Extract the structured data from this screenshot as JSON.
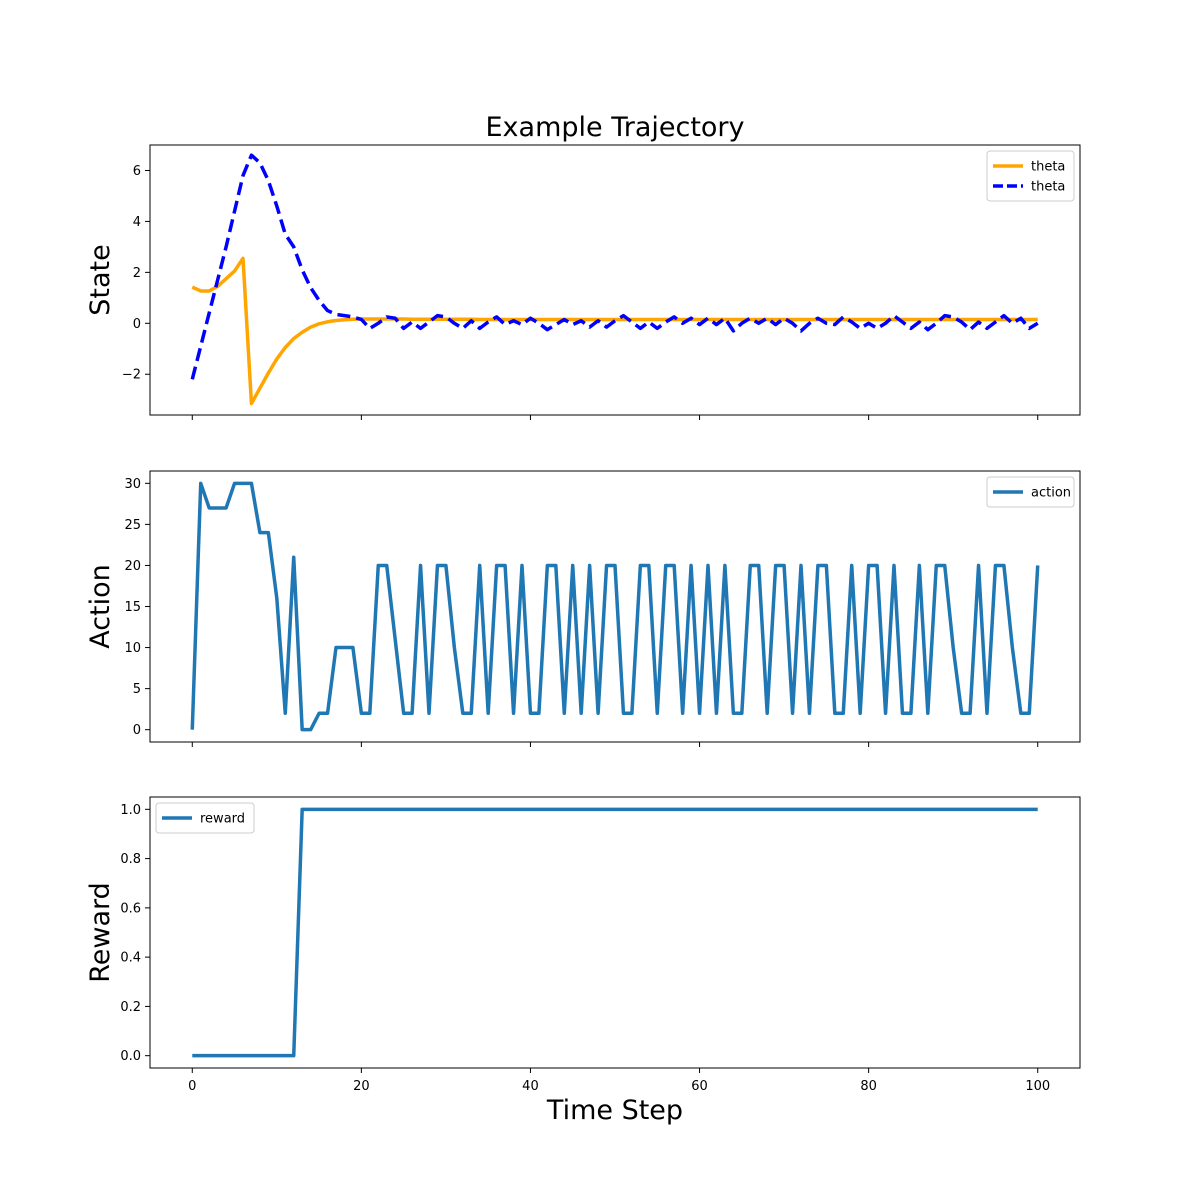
{
  "figure": {
    "title": "Example Trajectory",
    "xlabel": "Time Step"
  },
  "chart_data": [
    {
      "type": "line",
      "ylabel": "State",
      "xlim": [
        -5,
        105
      ],
      "ylim": [
        -3.6,
        7.0
      ],
      "xticks": [
        0,
        20,
        40,
        60,
        80,
        100
      ],
      "yticks": [
        -2,
        0,
        2,
        4,
        6
      ],
      "ytick_labels": [
        "−2",
        "0",
        "2",
        "4",
        "6"
      ],
      "show_xtick_labels": false,
      "grid": false,
      "legend_position": "top-right",
      "series": [
        {
          "name": "theta",
          "color": "#ffa500",
          "style": "solid",
          "x": [
            0,
            1,
            2,
            3,
            4,
            5,
            6,
            7,
            8,
            9,
            10,
            11,
            12,
            13,
            14,
            15,
            16,
            17,
            18,
            19,
            20,
            21,
            22,
            23,
            24,
            25,
            26,
            27,
            28,
            29,
            30,
            31,
            32,
            33,
            34,
            35,
            36,
            37,
            38,
            39,
            40,
            41,
            42,
            43,
            44,
            45,
            46,
            47,
            48,
            49,
            50,
            51,
            52,
            53,
            54,
            55,
            56,
            57,
            58,
            59,
            60,
            61,
            62,
            63,
            64,
            65,
            66,
            67,
            68,
            69,
            70,
            71,
            72,
            73,
            74,
            75,
            76,
            77,
            78,
            79,
            80,
            81,
            82,
            83,
            84,
            85,
            86,
            87,
            88,
            89,
            90,
            91,
            92,
            93,
            94,
            95,
            96,
            97,
            98,
            99,
            100
          ],
          "y": [
            1.42,
            1.27,
            1.27,
            1.45,
            1.75,
            2.05,
            2.55,
            -3.15,
            -2.55,
            -1.95,
            -1.4,
            -0.95,
            -0.6,
            -0.35,
            -0.15,
            -0.02,
            0.06,
            0.11,
            0.14,
            0.16,
            0.17,
            0.17,
            0.17,
            0.17,
            0.17,
            0.17,
            0.16,
            0.16,
            0.16,
            0.16,
            0.16,
            0.16,
            0.16,
            0.16,
            0.15,
            0.15,
            0.15,
            0.15,
            0.15,
            0.15,
            0.15,
            0.15,
            0.15,
            0.15,
            0.15,
            0.15,
            0.15,
            0.15,
            0.15,
            0.15,
            0.15,
            0.15,
            0.15,
            0.15,
            0.15,
            0.15,
            0.15,
            0.15,
            0.15,
            0.15,
            0.15,
            0.15,
            0.15,
            0.15,
            0.15,
            0.15,
            0.15,
            0.15,
            0.15,
            0.15,
            0.15,
            0.15,
            0.15,
            0.15,
            0.15,
            0.15,
            0.15,
            0.15,
            0.15,
            0.15,
            0.15,
            0.15,
            0.15,
            0.15,
            0.15,
            0.15,
            0.15,
            0.15,
            0.15,
            0.15,
            0.15,
            0.15,
            0.15,
            0.15,
            0.15,
            0.15,
            0.15,
            0.15,
            0.15,
            0.15,
            0.15
          ]
        },
        {
          "name": "theta",
          "color": "#0000ff",
          "style": "dashed",
          "x": [
            0,
            1,
            2,
            3,
            4,
            5,
            6,
            7,
            8,
            9,
            10,
            11,
            12,
            13,
            14,
            15,
            16,
            17,
            18,
            19,
            20,
            21,
            22,
            23,
            24,
            25,
            26,
            27,
            28,
            29,
            30,
            31,
            32,
            33,
            34,
            35,
            36,
            37,
            38,
            39,
            40,
            41,
            42,
            43,
            44,
            45,
            46,
            47,
            48,
            49,
            50,
            51,
            52,
            53,
            54,
            55,
            56,
            57,
            58,
            59,
            60,
            61,
            62,
            63,
            64,
            65,
            66,
            67,
            68,
            69,
            70,
            71,
            72,
            73,
            74,
            75,
            76,
            77,
            78,
            79,
            80,
            81,
            82,
            83,
            84,
            85,
            86,
            87,
            88,
            89,
            90,
            91,
            92,
            93,
            94,
            95,
            96,
            97,
            98,
            99,
            100
          ],
          "y": [
            -2.2,
            -0.9,
            0.4,
            1.7,
            3.0,
            4.4,
            5.8,
            6.6,
            6.3,
            5.6,
            4.6,
            3.5,
            3.0,
            2.1,
            1.4,
            0.9,
            0.5,
            0.35,
            0.3,
            0.25,
            0.15,
            -0.2,
            0.0,
            0.25,
            0.2,
            -0.2,
            0.05,
            -0.2,
            0.05,
            0.3,
            0.25,
            0.0,
            -0.2,
            0.1,
            -0.2,
            0.05,
            0.25,
            -0.05,
            0.1,
            -0.05,
            0.2,
            0.0,
            -0.25,
            -0.05,
            0.15,
            -0.05,
            0.1,
            -0.15,
            0.1,
            -0.15,
            0.1,
            0.3,
            0.05,
            -0.2,
            0.05,
            -0.2,
            0.05,
            0.25,
            0.0,
            0.2,
            -0.05,
            0.2,
            -0.05,
            0.2,
            -0.3,
            0.0,
            0.2,
            0.0,
            0.2,
            -0.05,
            0.2,
            0.0,
            -0.3,
            0.0,
            0.2,
            0.0,
            -0.05,
            0.25,
            0.05,
            -0.2,
            0.0,
            -0.2,
            0.0,
            0.3,
            0.05,
            -0.2,
            0.05,
            -0.25,
            0.0,
            0.3,
            0.25,
            0.05,
            -0.25,
            0.05,
            -0.2,
            0.05,
            0.3,
            0.0,
            0.2,
            -0.2,
            0.0
          ]
        }
      ]
    },
    {
      "type": "line",
      "ylabel": "Action",
      "xlim": [
        -5,
        105
      ],
      "ylim": [
        -1.5,
        31.5
      ],
      "xticks": [
        0,
        20,
        40,
        60,
        80,
        100
      ],
      "yticks": [
        0,
        5,
        10,
        15,
        20,
        25,
        30
      ],
      "ytick_labels": [
        "0",
        "5",
        "10",
        "15",
        "20",
        "25",
        "30"
      ],
      "show_xtick_labels": false,
      "grid": false,
      "legend_position": "top-right",
      "series": [
        {
          "name": "action",
          "color": "#1f77b4",
          "style": "solid",
          "x": [
            0,
            1,
            2,
            3,
            4,
            5,
            6,
            7,
            8,
            9,
            10,
            11,
            12,
            13,
            14,
            15,
            16,
            17,
            18,
            19,
            20,
            21,
            22,
            23,
            24,
            25,
            26,
            27,
            28,
            29,
            30,
            31,
            32,
            33,
            34,
            35,
            36,
            37,
            38,
            39,
            40,
            41,
            42,
            43,
            44,
            45,
            46,
            47,
            48,
            49,
            50,
            51,
            52,
            53,
            54,
            55,
            56,
            57,
            58,
            59,
            60,
            61,
            62,
            63,
            64,
            65,
            66,
            67,
            68,
            69,
            70,
            71,
            72,
            73,
            74,
            75,
            76,
            77,
            78,
            79,
            80,
            81,
            82,
            83,
            84,
            85,
            86,
            87,
            88,
            89,
            90,
            91,
            92,
            93,
            94,
            95,
            96,
            97,
            98,
            99,
            100
          ],
          "y": [
            0,
            30,
            27,
            27,
            27,
            30,
            30,
            30,
            24,
            24,
            16,
            2,
            21,
            0,
            0,
            2,
            2,
            10,
            10,
            10,
            2,
            2,
            20,
            20,
            11,
            2,
            2,
            20,
            2,
            20,
            20,
            10,
            2,
            2,
            20,
            2,
            20,
            20,
            2,
            20,
            2,
            2,
            20,
            20,
            2,
            20,
            2,
            20,
            2,
            20,
            20,
            2,
            2,
            20,
            20,
            2,
            20,
            20,
            2,
            20,
            2,
            20,
            2,
            20,
            2,
            2,
            20,
            20,
            2,
            20,
            20,
            2,
            20,
            2,
            20,
            20,
            2,
            2,
            20,
            2,
            20,
            20,
            2,
            20,
            2,
            2,
            20,
            2,
            20,
            20,
            10,
            2,
            2,
            20,
            2,
            20,
            20,
            10,
            2,
            2,
            20
          ]
        }
      ]
    },
    {
      "type": "line",
      "ylabel": "Reward",
      "xlim": [
        -5,
        105
      ],
      "ylim": [
        -0.05,
        1.05
      ],
      "xticks": [
        0,
        20,
        40,
        60,
        80,
        100
      ],
      "xtick_labels": [
        "0",
        "20",
        "40",
        "60",
        "80",
        "100"
      ],
      "yticks": [
        0.0,
        0.2,
        0.4,
        0.6,
        0.8,
        1.0
      ],
      "ytick_labels": [
        "0.0",
        "0.2",
        "0.4",
        "0.6",
        "0.8",
        "1.0"
      ],
      "show_xtick_labels": true,
      "grid": false,
      "legend_position": "top-left",
      "series": [
        {
          "name": "reward",
          "color": "#1f77b4",
          "style": "solid",
          "x": [
            0,
            12,
            13,
            100
          ],
          "y": [
            0,
            0,
            1,
            1
          ]
        }
      ]
    }
  ]
}
